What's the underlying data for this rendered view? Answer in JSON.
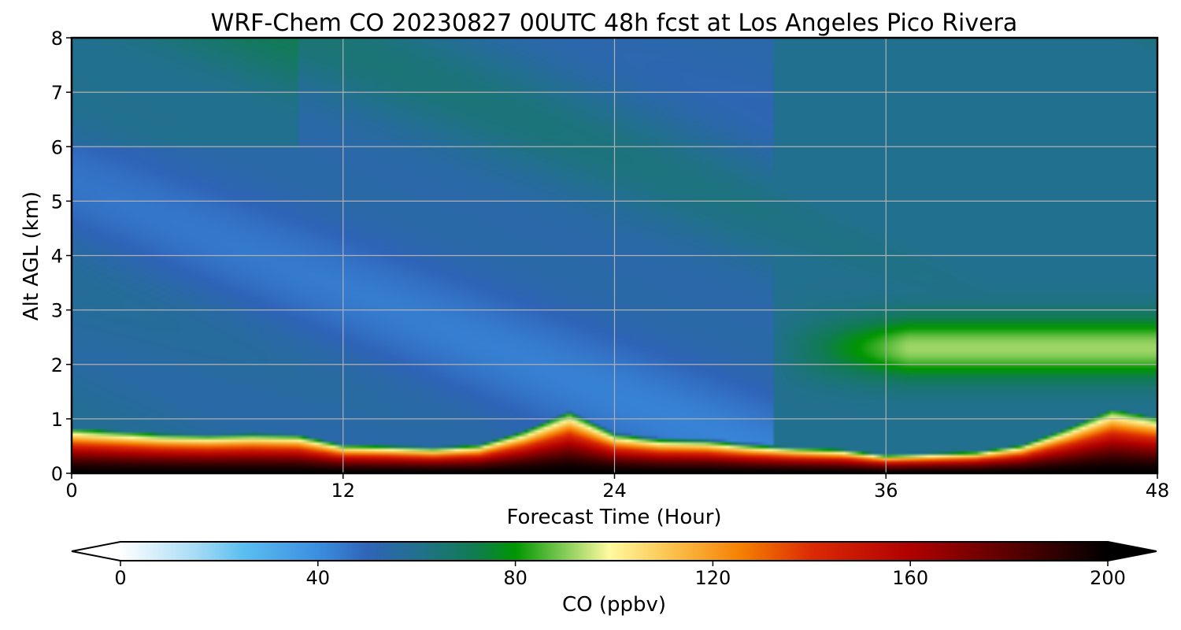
{
  "chart_data": {
    "type": "heatmap",
    "title": "WRF-Chem CO  20230827 00UTC 48h fcst at Los Angeles Pico Rivera",
    "xlabel": "Forecast Time (Hour)",
    "ylabel": "Alt AGL (km)",
    "xlim": [
      0,
      48
    ],
    "ylim": [
      0,
      8
    ],
    "xticks": [
      0,
      12,
      24,
      36,
      48
    ],
    "yticks": [
      0,
      1,
      2,
      3,
      4,
      5,
      6,
      7,
      8
    ],
    "grid": true,
    "colorbar": {
      "label": "CO  (ppbv)",
      "min": 0,
      "max": 200,
      "ticks": [
        0,
        40,
        80,
        120,
        160,
        200
      ],
      "extend": "both",
      "orientation": "horizontal",
      "stops": [
        {
          "v": 0,
          "c": "#ffffff"
        },
        {
          "v": 15,
          "c": "#a8dcf5"
        },
        {
          "v": 25,
          "c": "#5bbef0"
        },
        {
          "v": 40,
          "c": "#3b8ee0"
        },
        {
          "v": 50,
          "c": "#2f64b8"
        },
        {
          "v": 60,
          "c": "#22708f"
        },
        {
          "v": 72,
          "c": "#107c50"
        },
        {
          "v": 80,
          "c": "#009600"
        },
        {
          "v": 90,
          "c": "#84cc58"
        },
        {
          "v": 99,
          "c": "#fffaa0"
        },
        {
          "v": 112,
          "c": "#fbc04a"
        },
        {
          "v": 126,
          "c": "#f57e00"
        },
        {
          "v": 140,
          "c": "#dc2a05"
        },
        {
          "v": 160,
          "c": "#b00000"
        },
        {
          "v": 180,
          "c": "#5a0000"
        },
        {
          "v": 200,
          "c": "#000000"
        }
      ]
    },
    "pbl_height_km": {
      "x": [
        0,
        2,
        4,
        6,
        8,
        10,
        12,
        14,
        16,
        18,
        20,
        22,
        24,
        26,
        28,
        30,
        32,
        34,
        36,
        38,
        40,
        42,
        44,
        46,
        48
      ],
      "y": [
        0.8,
        0.75,
        0.7,
        0.68,
        0.7,
        0.68,
        0.5,
        0.48,
        0.45,
        0.5,
        0.75,
        1.1,
        0.7,
        0.6,
        0.58,
        0.5,
        0.45,
        0.42,
        0.32,
        0.35,
        0.38,
        0.5,
        0.8,
        1.15,
        1.0
      ]
    },
    "elevated_plume": {
      "x_range": [
        31,
        48
      ],
      "alt_range_km": [
        1.5,
        3.5
      ],
      "peak_ppbv": 92
    }
  }
}
